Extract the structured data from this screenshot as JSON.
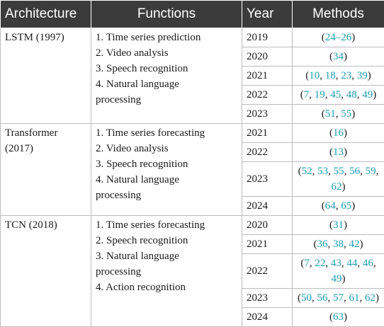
{
  "headers": {
    "architecture": "Architecture",
    "functions": "Functions",
    "year": "Year",
    "methods": "Methods"
  },
  "rows": [
    {
      "architecture": "LSTM (1997)",
      "functions": [
        "1. Time series prediction",
        "2. Video analysis",
        "3. Speech recognition",
        "4. Natural language",
        "processing"
      ],
      "years": [
        {
          "year": "2019",
          "refs": [
            "24–26"
          ]
        },
        {
          "year": "2020",
          "refs": [
            "34"
          ]
        },
        {
          "year": "2021",
          "refs": [
            "10",
            "18",
            "23",
            "39"
          ]
        },
        {
          "year": "2022",
          "refs": [
            "7",
            "19",
            "45",
            "48",
            "49"
          ]
        },
        {
          "year": "2023",
          "refs": [
            "51",
            "55"
          ]
        }
      ]
    },
    {
      "architecture": "Transformer (2017)",
      "functions": [
        "1. Time series forecasting",
        "2. Video analysis",
        "3. Speech recognition",
        "4. Natural language",
        "processing"
      ],
      "years": [
        {
          "year": "2021",
          "refs": [
            "16"
          ]
        },
        {
          "year": "2022",
          "refs": [
            "13"
          ]
        },
        {
          "year": "2023",
          "refs": [
            "52",
            "53",
            "55",
            "56",
            "59",
            "62"
          ]
        },
        {
          "year": "2024",
          "refs": [
            "64",
            "65"
          ]
        }
      ]
    },
    {
      "architecture": "TCN (2018)",
      "functions": [
        "1. Time series forecasting",
        "2. Speech recognition",
        "3. Natural language",
        "processing",
        "4. Action recognition"
      ],
      "years": [
        {
          "year": "2020",
          "refs": [
            "31"
          ]
        },
        {
          "year": "2021",
          "refs": [
            "36",
            "38",
            "42"
          ]
        },
        {
          "year": "2022",
          "refs": [
            "7",
            "22",
            "43",
            "44",
            "46",
            "49"
          ]
        },
        {
          "year": "2023",
          "refs": [
            "50",
            "56",
            "57",
            "61",
            "62"
          ]
        },
        {
          "year": "2024",
          "refs": [
            "63"
          ]
        }
      ]
    }
  ],
  "colors": {
    "header_bg": "#3b3b3b",
    "header_text": "#ffffff",
    "ref_link": "#1b9bb2",
    "border": "#bdbdbd"
  }
}
